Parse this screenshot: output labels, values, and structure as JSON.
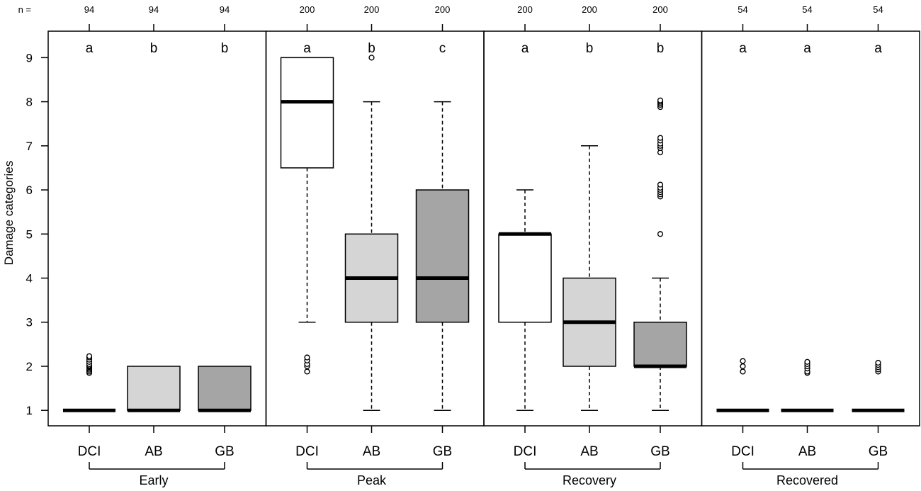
{
  "chart_data": {
    "type": "boxplot",
    "ylabel": "Damage categories",
    "ylim": [
      0.65,
      9.6
    ],
    "y_ticks": [
      1,
      2,
      3,
      4,
      5,
      6,
      7,
      8,
      9
    ],
    "n_prefix": "n =",
    "colors": {
      "DCI": "#ffffff",
      "AB": "#d5d5d5",
      "GB": "#a5a5a5",
      "stroke": "#000000"
    },
    "panels": [
      {
        "phase": "Early",
        "groups": [
          {
            "name": "DCI",
            "n": "94",
            "sig": "a",
            "low": 1,
            "q1": 1,
            "median": 1,
            "q3": 1,
            "high": 1,
            "outliers": [
              1.85,
              1.88,
              1.92,
              1.95,
              1.98,
              2.0,
              2.02,
              2.05,
              2.1,
              2.15,
              2.2,
              2.23
            ]
          },
          {
            "name": "AB",
            "n": "94",
            "sig": "b",
            "low": 1,
            "q1": 1,
            "median": 1,
            "q3": 2,
            "high": 2,
            "outliers": []
          },
          {
            "name": "GB",
            "n": "94",
            "sig": "b",
            "low": 1,
            "q1": 1,
            "median": 1,
            "q3": 2,
            "high": 2,
            "outliers": []
          }
        ]
      },
      {
        "phase": "Peak",
        "groups": [
          {
            "name": "DCI",
            "n": "200",
            "sig": "a",
            "low": 3,
            "q1": 6.5,
            "median": 8,
            "q3": 9,
            "high": 9,
            "outliers": [
              1.88,
              2.0,
              2.05,
              2.13,
              2.2
            ]
          },
          {
            "name": "AB",
            "n": "200",
            "sig": "b",
            "low": 1,
            "q1": 3,
            "median": 4,
            "q3": 5,
            "high": 8,
            "outliers": [
              9.0
            ]
          },
          {
            "name": "GB",
            "n": "200",
            "sig": "c",
            "low": 1,
            "q1": 3,
            "median": 4,
            "q3": 6,
            "high": 8,
            "outliers": []
          }
        ]
      },
      {
        "phase": "Recovery",
        "groups": [
          {
            "name": "DCI",
            "n": "200",
            "sig": "a",
            "low": 1,
            "q1": 3,
            "median": 5,
            "q3": 5,
            "high": 6,
            "outliers": []
          },
          {
            "name": "AB",
            "n": "200",
            "sig": "b",
            "low": 1,
            "q1": 2,
            "median": 3,
            "q3": 4,
            "high": 7,
            "outliers": []
          },
          {
            "name": "GB",
            "n": "200",
            "sig": "b",
            "low": 1,
            "q1": 2,
            "median": 2,
            "q3": 3,
            "high": 4,
            "outliers": [
              5.0,
              5.85,
              5.9,
              5.95,
              6.0,
              6.05,
              6.12,
              6.85,
              6.95,
              7.0,
              7.05,
              7.12,
              7.18,
              7.88,
              7.93,
              7.97,
              8.0,
              8.03
            ]
          }
        ]
      },
      {
        "phase": "Recovered",
        "groups": [
          {
            "name": "DCI",
            "n": "54",
            "sig": "a",
            "low": 1,
            "q1": 1,
            "median": 1,
            "q3": 1,
            "high": 1,
            "outliers": [
              1.88,
              2.0,
              2.12
            ]
          },
          {
            "name": "AB",
            "n": "54",
            "sig": "a",
            "low": 1,
            "q1": 1,
            "median": 1,
            "q3": 1,
            "high": 1,
            "outliers": [
              1.85,
              1.88,
              1.95,
              2.0,
              2.05,
              2.1
            ]
          },
          {
            "name": "GB",
            "n": "54",
            "sig": "a",
            "low": 1,
            "q1": 1,
            "median": 1,
            "q3": 1,
            "high": 1,
            "outliers": [
              1.88,
              1.93,
              1.98,
              2.03,
              2.08
            ]
          }
        ]
      }
    ]
  }
}
